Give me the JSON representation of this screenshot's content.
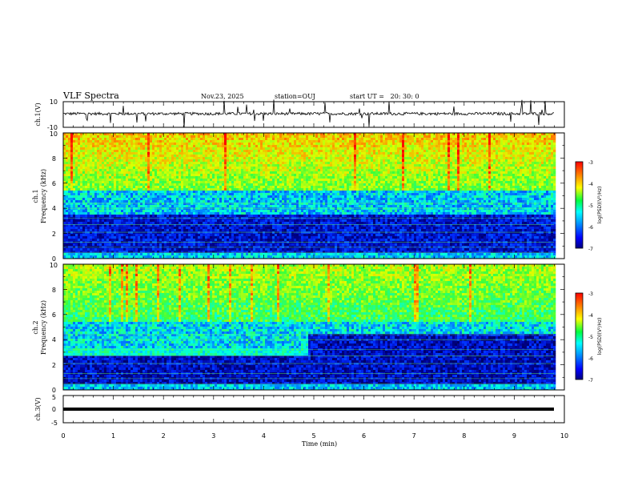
{
  "header": {
    "title": "VLF Spectra",
    "date": "Nov.23, 2025",
    "station": "station=OUJ",
    "start_ut": "start UT =   20: 30: 0"
  },
  "chart_data": [
    {
      "type": "line",
      "name": "ch1-waveform",
      "ylabel": "ch.1(V)",
      "ylim": [
        -10,
        10
      ],
      "yticks": [
        "10",
        "-10"
      ],
      "xlim": [
        0,
        10
      ]
    },
    {
      "type": "heatmap",
      "name": "ch1-spectrogram",
      "ylabel": "ch.1",
      "ylabel2": "Frequency (kHz)",
      "ylim": [
        0,
        10
      ],
      "yticks": [
        "0",
        "2",
        "4",
        "6",
        "8",
        "10"
      ],
      "xlim": [
        0,
        10
      ],
      "colorbar": {
        "label": "log(PSD)(V²/Hz)",
        "ticks": [
          "-3",
          "-4",
          "-5",
          "-6",
          "-7"
        ],
        "range": [
          -7,
          -3
        ]
      }
    },
    {
      "type": "heatmap",
      "name": "ch2-spectrogram",
      "ylabel": "ch.2",
      "ylabel2": "Frequency (kHz)",
      "ylim": [
        0,
        10
      ],
      "yticks": [
        "0",
        "2",
        "4",
        "6",
        "8",
        "10"
      ],
      "xlim": [
        0,
        10
      ],
      "colorbar": {
        "label": "log(PSD)(V²/Hz)",
        "ticks": [
          "-3",
          "-4",
          "-5",
          "-6",
          "-7"
        ],
        "range": [
          -7,
          -3
        ]
      }
    },
    {
      "type": "line",
      "name": "ch3-waveform",
      "ylabel": "ch.3(V)",
      "ylim": [
        -5,
        5
      ],
      "yticks": [
        "5",
        "0",
        "-5"
      ],
      "xlim": [
        0,
        10
      ],
      "series": [
        {
          "x": [
            0,
            9.8
          ],
          "y": [
            0,
            0
          ]
        }
      ]
    }
  ],
  "xaxis": {
    "label": "Time (min)",
    "ticks": [
      "0",
      "1",
      "2",
      "3",
      "4",
      "5",
      "6",
      "7",
      "8",
      "9",
      "10"
    ]
  },
  "colors": {
    "waveform": "#000000",
    "frame": "#000000"
  }
}
